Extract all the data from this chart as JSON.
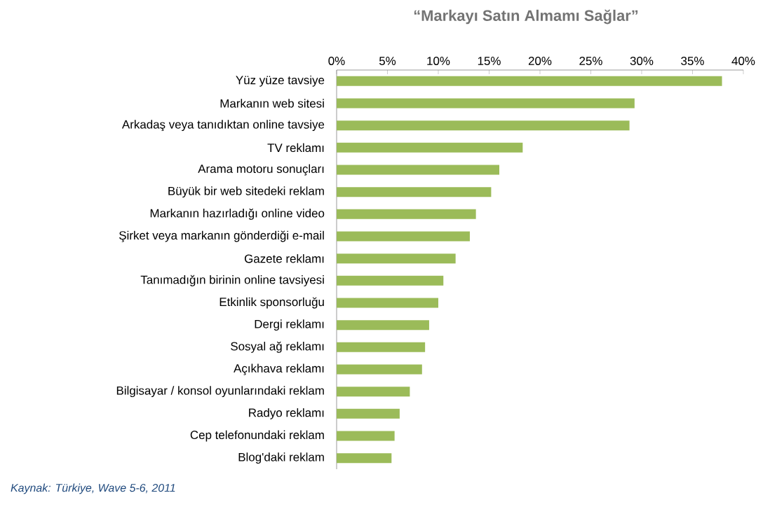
{
  "chart_data": {
    "type": "bar",
    "orientation": "horizontal",
    "title": "“Markayı Satın Almamı Sağlar”",
    "categories": [
      "Yüz yüze tavsiye",
      "Markanın web sitesi",
      "Arkadaş veya tanıdıktan online tavsiye",
      "TV reklamı",
      "Arama motoru sonuçları",
      "Büyük bir web sitedeki reklam",
      "Markanın hazırladığı online video",
      "Şirket veya markanın gönderdiği e-mail",
      "Gazete reklamı",
      "Tanımadığın birinin online tavsiyesi",
      "Etkinlik sponsorluğu",
      "Dergi reklamı",
      "Sosyal ağ reklamı",
      "Açıkhava reklamı",
      "Bilgisayar / konsol oyunlarındaki reklam",
      "Radyo reklamı",
      "Cep telefonundaki reklam",
      "Blog'daki reklam"
    ],
    "values": [
      37.9,
      29.3,
      28.8,
      18.3,
      16.0,
      15.2,
      13.7,
      13.1,
      11.7,
      10.5,
      10.0,
      9.1,
      8.7,
      8.4,
      7.2,
      6.2,
      5.7,
      5.4
    ],
    "color": "#9bbb59",
    "xlim": [
      0,
      40
    ],
    "xticks": [
      {
        "value": 0,
        "label": "0%"
      },
      {
        "value": 5,
        "label": "5%"
      },
      {
        "value": 10,
        "label": "10%"
      },
      {
        "value": 15,
        "label": "15%"
      },
      {
        "value": 20,
        "label": "20%"
      },
      {
        "value": 25,
        "label": "25%"
      },
      {
        "value": 30,
        "label": "30%"
      },
      {
        "value": 35,
        "label": "35%"
      },
      {
        "value": 40,
        "label": "40%"
      }
    ],
    "annotations": [
      "Kaynak: Türkiye, Wave 5-6, 2011"
    ]
  }
}
